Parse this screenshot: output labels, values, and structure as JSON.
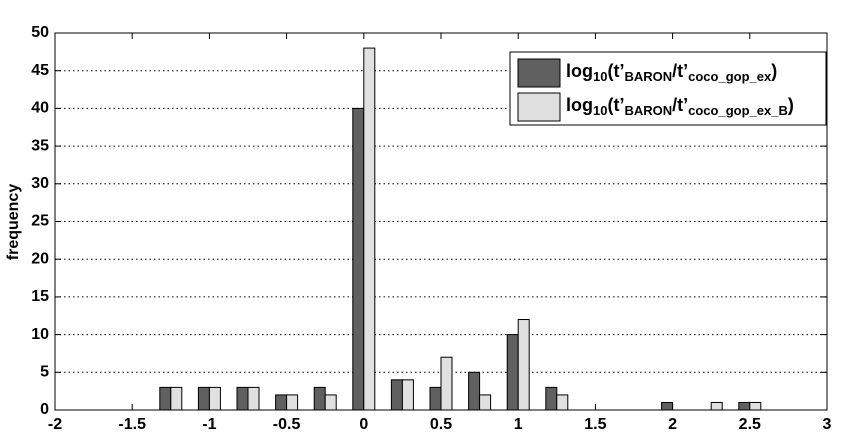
{
  "chart_data": {
    "type": "bar",
    "ylabel": "frequency",
    "x": [
      -1.25,
      -1,
      -0.75,
      -0.5,
      -0.25,
      0,
      0.25,
      0.5,
      0.75,
      1,
      1.25,
      1.5,
      1.75,
      2,
      2.25,
      2.5
    ],
    "series": [
      {
        "name": "log10(t’BARON/t’coco_gop_ex)",
        "color": "#606060",
        "values": [
          3,
          3,
          3,
          2,
          3,
          40,
          4,
          3,
          5,
          10,
          3,
          0,
          0,
          1,
          0,
          1
        ]
      },
      {
        "name": "log10(t’BARON/t’coco_gop_ex_B)",
        "color": "#e0e0e0",
        "values": [
          3,
          3,
          3,
          2,
          2,
          48,
          4,
          7,
          2,
          12,
          2,
          0,
          0,
          0,
          1,
          1
        ]
      }
    ],
    "xlim": [
      -2,
      3
    ],
    "xticks": [
      -2,
      -1.5,
      -1,
      -0.5,
      0,
      0.5,
      1,
      1.5,
      2,
      2.5,
      3
    ],
    "ylim": [
      0,
      50
    ],
    "yticks": [
      0,
      5,
      10,
      15,
      20,
      25,
      30,
      35,
      40,
      45,
      50
    ],
    "grid": true,
    "legend": "upper right"
  }
}
